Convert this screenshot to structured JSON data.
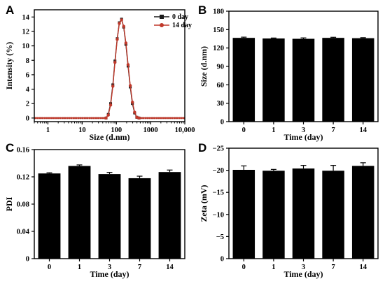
{
  "chart_data": [
    {
      "panel": "A",
      "type": "line",
      "xlabel": "Size (d.nm)",
      "ylabel": "Intensity (%)",
      "xscale": "log",
      "xlim": [
        0.4,
        10000
      ],
      "ylim": [
        -0.5,
        15
      ],
      "xticks": [
        1,
        10,
        100,
        1000,
        10000
      ],
      "xtick_labels": [
        "1",
        "10",
        "100",
        "1000",
        "10,000"
      ],
      "yticks": [
        0,
        2,
        4,
        6,
        8,
        10,
        12,
        14
      ],
      "yticks_labels": [
        "0",
        "2",
        "4",
        "6",
        "8",
        "10",
        "12",
        "14"
      ],
      "legend_position": "top-right",
      "series": [
        {
          "name": "0   day",
          "color": "#1a1a1a",
          "marker": "square",
          "x": [
            0.4,
            50,
            58,
            68,
            79,
            91,
            106,
            122,
            142,
            164,
            190,
            220,
            255,
            295,
            342,
            396,
            459,
            10000
          ],
          "y": [
            0,
            0,
            0.5,
            2.0,
            4.6,
            7.9,
            11.0,
            13.2,
            13.7,
            12.6,
            10.2,
            7.2,
            4.3,
            2.0,
            0.7,
            0.1,
            0,
            0
          ]
        },
        {
          "name": "14 day",
          "color": "#c0392b",
          "marker": "circle",
          "x": [
            0.4,
            50,
            58,
            68,
            79,
            91,
            106,
            122,
            142,
            164,
            190,
            220,
            255,
            295,
            342,
            396,
            459,
            10000
          ],
          "y": [
            0,
            0,
            0.4,
            1.8,
            4.4,
            7.7,
            10.9,
            13.1,
            13.6,
            12.7,
            10.4,
            7.4,
            4.5,
            2.2,
            0.8,
            0.1,
            0,
            0
          ]
        }
      ]
    },
    {
      "panel": "B",
      "type": "bar",
      "xlabel": "Time (day)",
      "ylabel": "Size (d.nm)",
      "categories": [
        "0",
        "1",
        "3",
        "7",
        "14"
      ],
      "values": [
        136.5,
        135.5,
        135,
        136.5,
        136
      ],
      "errors": [
        1.2,
        0.8,
        1.5,
        1.0,
        0.9
      ],
      "ylim": [
        0,
        180
      ],
      "yticks": [
        0,
        30,
        60,
        90,
        120,
        150,
        180
      ],
      "yticks_labels": [
        "0",
        "30",
        "60",
        "90",
        "120",
        "150",
        "180"
      ]
    },
    {
      "panel": "C",
      "type": "bar",
      "xlabel": "Time (day)",
      "ylabel": "PDI",
      "categories": [
        "0",
        "1",
        "3",
        "7",
        "14"
      ],
      "values": [
        0.125,
        0.136,
        0.124,
        0.118,
        0.127
      ],
      "errors": [
        0.001,
        0.0015,
        0.0025,
        0.003,
        0.003
      ],
      "ylim": [
        0,
        0.16
      ],
      "yticks": [
        0,
        0.04,
        0.08,
        0.12,
        0.16
      ],
      "yticks_labels": [
        "0",
        "0.04",
        "0.08",
        "0.12",
        "0.16"
      ]
    },
    {
      "panel": "D",
      "type": "bar",
      "xlabel": "Time (day)",
      "ylabel": "Zeta (mV)",
      "categories": [
        "0",
        "1",
        "3",
        "7",
        "14"
      ],
      "values": [
        -20.1,
        -19.9,
        -20.4,
        -19.9,
        -21.0
      ],
      "errors": [
        0.9,
        0.3,
        0.7,
        1.2,
        0.7
      ],
      "ylim": [
        0,
        -25
      ],
      "yticks": [
        0,
        -5,
        -10,
        -15,
        -20,
        -25
      ],
      "yticks_labels": [
        "0",
        "−5",
        "−10",
        "−15",
        "−20",
        "−25"
      ]
    }
  ]
}
